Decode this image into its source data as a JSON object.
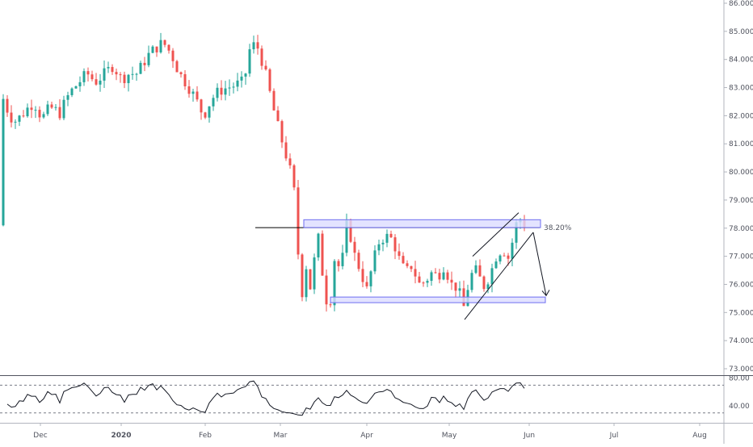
{
  "chart_data": {
    "type": "candlestick",
    "y_axis": {
      "ticks": [
        "86.000",
        "85.000",
        "84.000",
        "83.000",
        "82.000",
        "81.000",
        "80.000",
        "79.000",
        "78.000",
        "77.000",
        "76.000",
        "75.000",
        "74.000",
        "73.000"
      ],
      "range": [
        72.9,
        86.1
      ]
    },
    "x_axis": {
      "labels": [
        "Dec",
        "2020",
        "Feb",
        "Mar",
        "Apr",
        "May",
        "Jun",
        "Jul",
        "Aug"
      ],
      "bold": [
        "2020"
      ]
    },
    "fib_label": "38.20%",
    "fib_level": 78.02,
    "ranges": [
      {
        "from_bar": 0,
        "to_bar": 0,
        "high": 78.3,
        "low": 78.02
      },
      {
        "high": 75.55,
        "low": 75.35
      }
    ],
    "rsi": {
      "ticks": [
        "80.00",
        "40.00"
      ],
      "range": [
        18,
        82
      ],
      "upper": 70,
      "lower": 30
    },
    "colors": {
      "up": "#26a69a",
      "down": "#ef5350",
      "box_fill": "#dcdcff",
      "box_stroke": "#6d6df0",
      "line": "#000000",
      "grid": "#f0f3fa"
    }
  }
}
